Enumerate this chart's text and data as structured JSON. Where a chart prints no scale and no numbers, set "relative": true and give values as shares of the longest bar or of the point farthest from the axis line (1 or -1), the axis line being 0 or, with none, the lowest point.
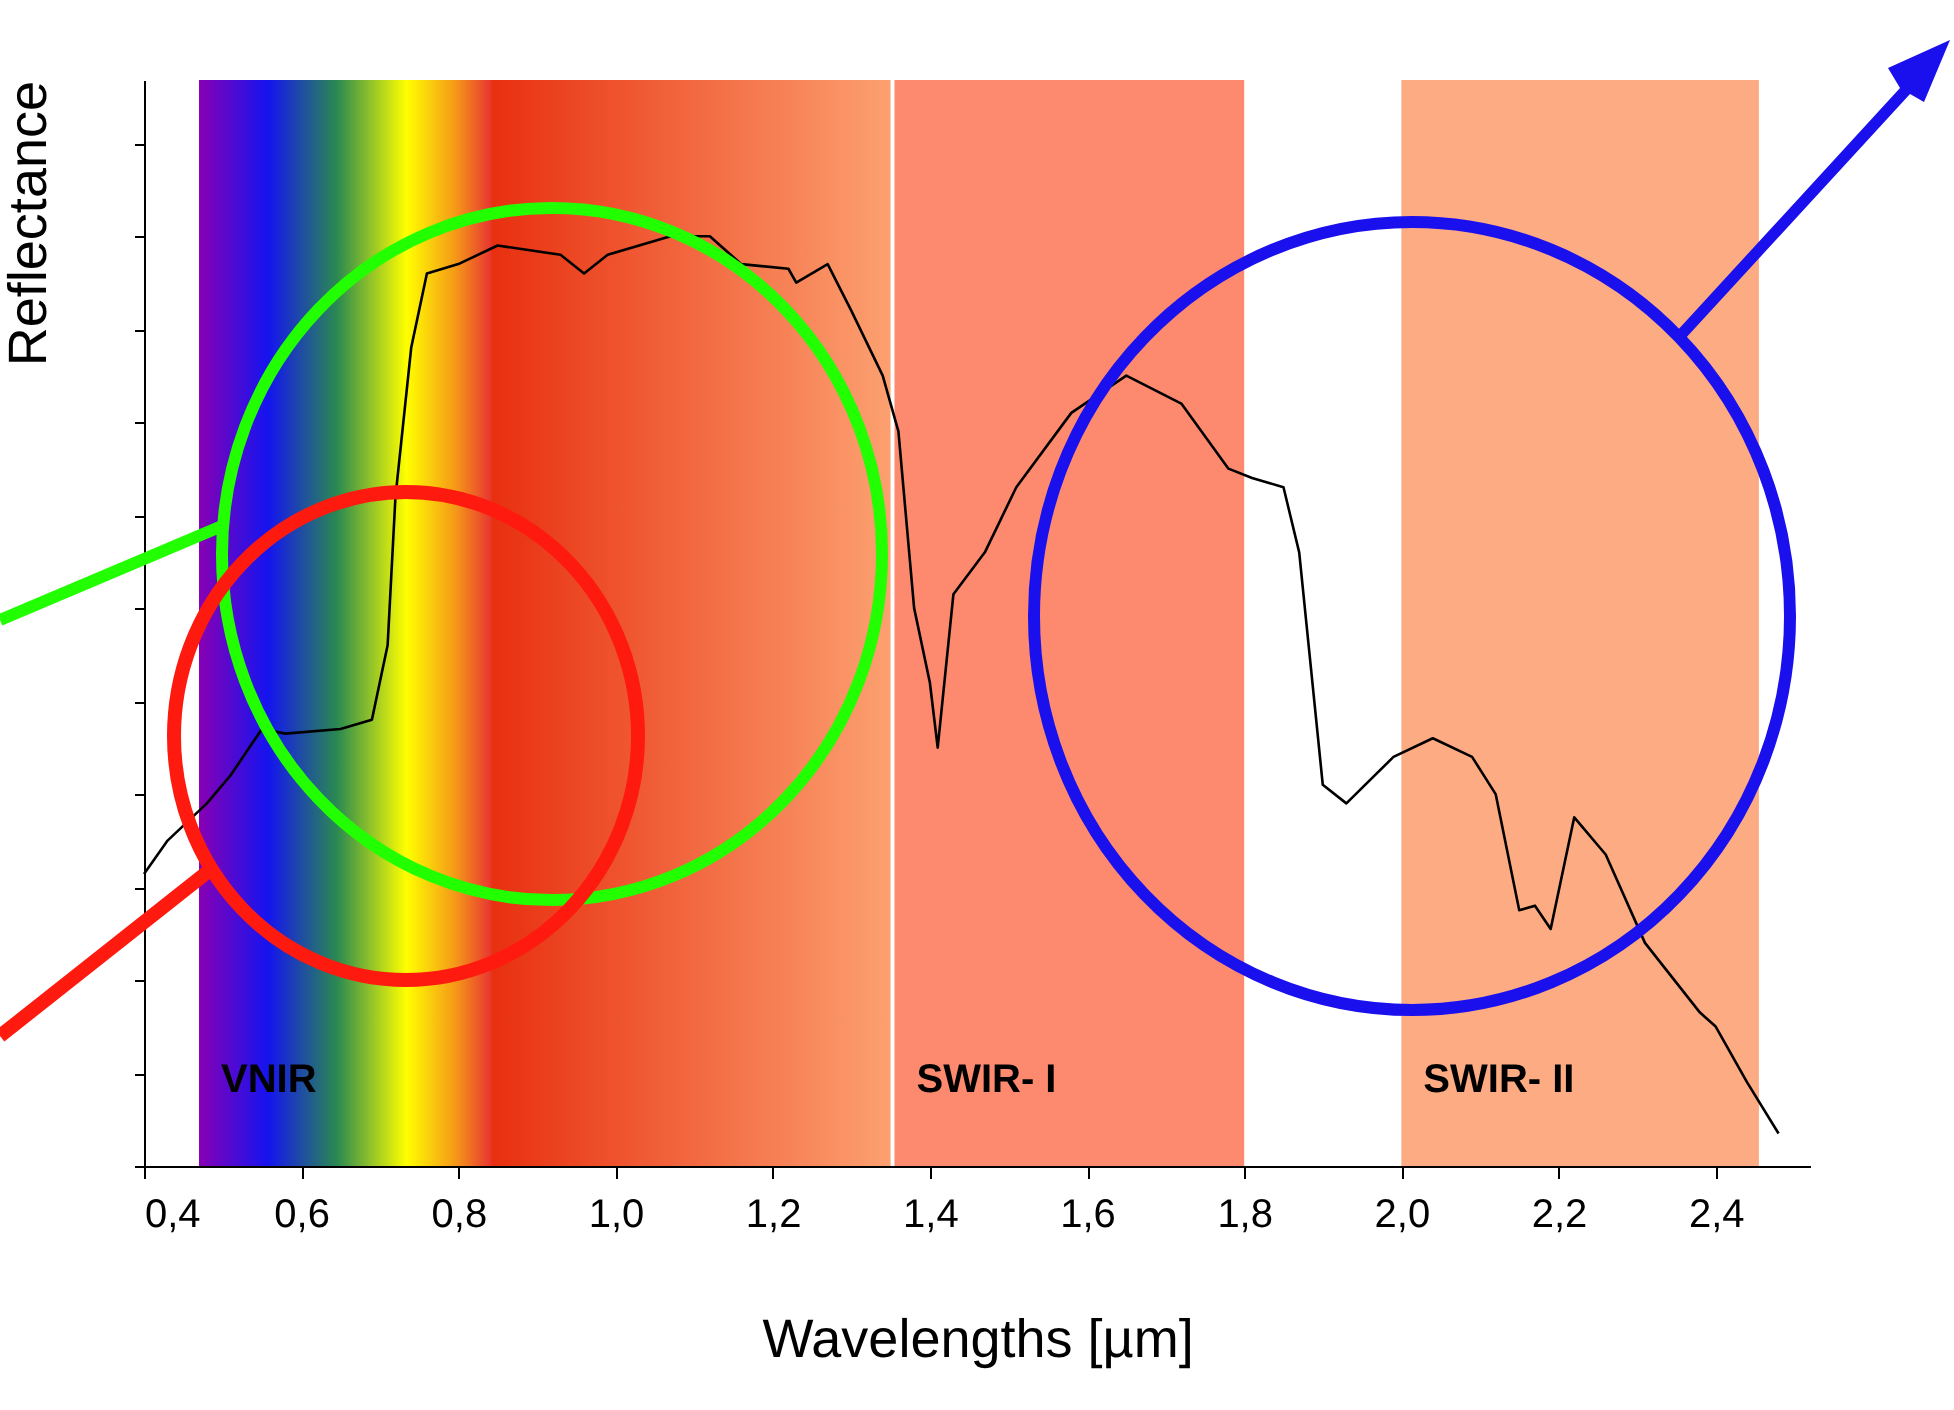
{
  "chart_data": {
    "type": "line",
    "xlabel": "Wavelengths [µm]",
    "ylabel": "Reflectance",
    "relative": true,
    "x": [
      0.4,
      0.43,
      0.48,
      0.51,
      0.55,
      0.58,
      0.65,
      0.69,
      0.71,
      0.72,
      0.74,
      0.76,
      0.8,
      0.85,
      0.93,
      0.96,
      0.99,
      1.07,
      1.12,
      1.16,
      1.22,
      1.23,
      1.27,
      1.3,
      1.34,
      1.36,
      1.38,
      1.4,
      1.41,
      1.43,
      1.47,
      1.51,
      1.58,
      1.65,
      1.72,
      1.78,
      1.81,
      1.85,
      1.87,
      1.9,
      1.93,
      1.99,
      2.04,
      2.09,
      2.12,
      2.15,
      2.17,
      2.19,
      2.22,
      2.26,
      2.31,
      2.38,
      2.4,
      2.44,
      2.48
    ],
    "series": [
      {
        "color": "#000000",
        "values": [
          0.314,
          0.35,
          0.39,
          0.42,
          0.47,
          0.465,
          0.47,
          0.48,
          0.56,
          0.72,
          0.88,
          0.96,
          0.97,
          0.99,
          0.98,
          0.96,
          0.98,
          1.0,
          1.0,
          0.97,
          0.965,
          0.95,
          0.97,
          0.92,
          0.85,
          0.79,
          0.6,
          0.52,
          0.45,
          0.615,
          0.66,
          0.73,
          0.81,
          0.85,
          0.82,
          0.75,
          0.74,
          0.73,
          0.66,
          0.41,
          0.39,
          0.44,
          0.46,
          0.44,
          0.4,
          0.275,
          0.28,
          0.255,
          0.375,
          0.335,
          0.24,
          0.165,
          0.15,
          0.09,
          0.035
        ]
      }
    ],
    "xlim": [
      0.4,
      2.52
    ],
    "xticks": [
      {
        "value": 0.4,
        "label": "0,4"
      },
      {
        "value": 0.6,
        "label": "0,6"
      },
      {
        "value": 0.8,
        "label": "0,8"
      },
      {
        "value": 1.0,
        "label": "1,0"
      },
      {
        "value": 1.2,
        "label": "1,2"
      },
      {
        "value": 1.4,
        "label": "1,4"
      },
      {
        "value": 1.6,
        "label": "1,6"
      },
      {
        "value": 1.8,
        "label": "1,8"
      },
      {
        "value": 2.0,
        "label": "2,0"
      },
      {
        "value": 2.2,
        "label": "2,2"
      },
      {
        "value": 2.4,
        "label": "2,4"
      }
    ],
    "bands": [
      {
        "axis": "x",
        "from": 0.47,
        "to": 1.35,
        "label": "VNIR",
        "color": "#fca070"
      },
      {
        "axis": "x",
        "from": 1.355,
        "to": 1.8,
        "label": "SWIR- I",
        "color": "#fd8a6e"
      },
      {
        "axis": "x",
        "from": 2.0,
        "to": 2.455,
        "label": "SWIR- II",
        "color": "#fdab82"
      }
    ]
  }
}
